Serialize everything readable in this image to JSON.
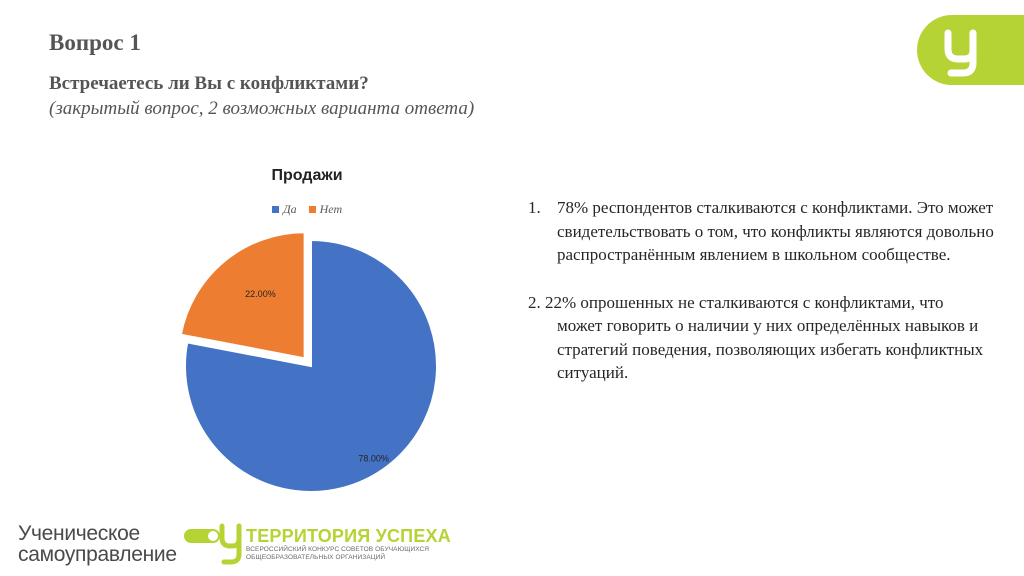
{
  "slide": {
    "title": "Вопрос 1",
    "question": "Встречаетесь ли Вы с конфликтами?",
    "question_note": "(закрытый вопрос, 2 возможных варианта ответа)"
  },
  "chart_data": {
    "type": "pie",
    "title": "Продажи",
    "categories": [
      "Да",
      "Нет"
    ],
    "values": [
      78,
      22
    ],
    "data_labels": [
      "78.00%",
      "22.00%"
    ],
    "colors": [
      "#4472c4",
      "#ed7d31"
    ],
    "exploded": "Нет",
    "legend_position": "top"
  },
  "findings": [
    {
      "number": "1.",
      "text": "78% респондентов сталкиваются с конфликтами. Это может свидетельствовать о том, что конфликты являются довольно распространённым явлением в школьном сообществе."
    },
    {
      "number": "2.",
      "lead": "22% опрошенных не сталкиваются с конфликтами, что",
      "text": "может говорить о наличии у них определённых навыков и стратегий поведения, позволяющих избегать конфликтных ситуаций."
    }
  ],
  "logos": {
    "corner_icon": "u-letter-logo-icon",
    "student_gov_line1": "Ученическое",
    "student_gov_line2": "самоуправление",
    "territory_title": "ТЕРРИТОРИЯ УСПЕХА",
    "territory_sub1": "ВСЕРОССИЙСКИЙ КОНКУРС СОВЕТОВ ОБУЧАЮЩИХСЯ",
    "territory_sub2": "ОБЩЕОБРАЗОВАТЕЛЬНЫХ ОРГАНИЗАЦИЙ",
    "accent_color": "#b5d334"
  }
}
